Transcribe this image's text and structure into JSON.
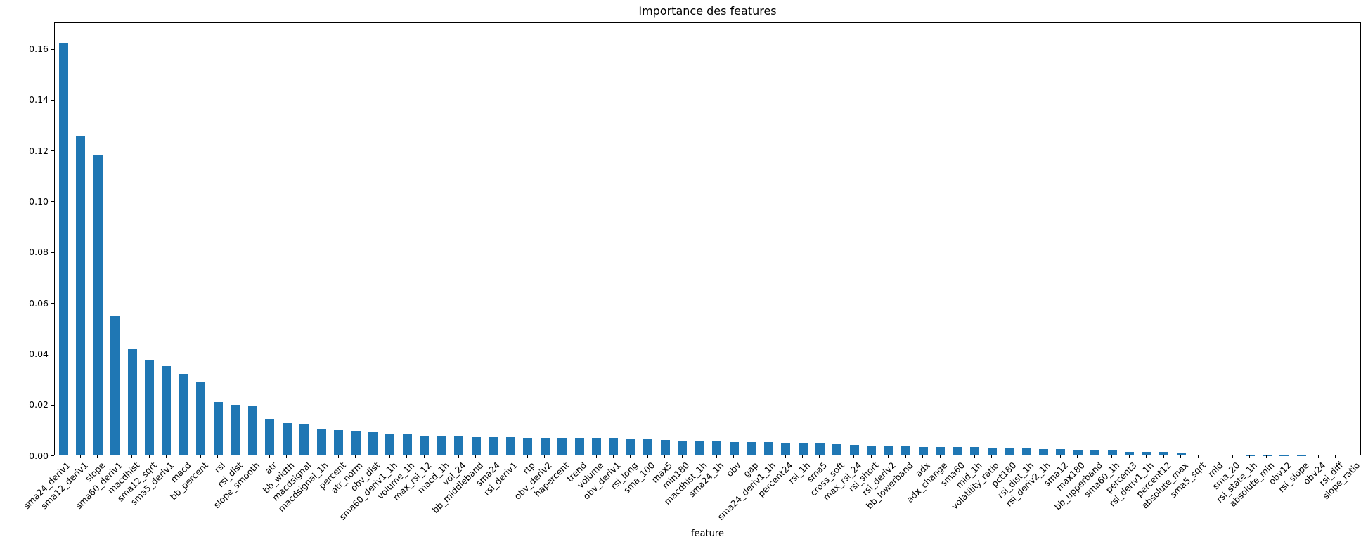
{
  "chart_data": {
    "type": "bar",
    "title": "Importance des features",
    "xlabel": "feature",
    "ylabel": "",
    "bar_color": "#1f77b4",
    "grid": false,
    "legend_position": "none",
    "x_tick_rotation": 45,
    "ylim": [
      0,
      0.1704
    ],
    "ytick_labels": [
      "0.00",
      "0.02",
      "0.04",
      "0.06",
      "0.08",
      "0.10",
      "0.12",
      "0.14",
      "0.16"
    ],
    "yticks": [
      0.0,
      0.02,
      0.04,
      0.06,
      0.08,
      0.1,
      0.12,
      0.14,
      0.16
    ],
    "categories": [
      "sma24_deriv1",
      "sma12_deriv1",
      "slope",
      "sma60_deriv1",
      "macdhist",
      "sma12_sqrt",
      "sma5_deriv1",
      "macd",
      "bb_percent",
      "rsi",
      "rsi_dist",
      "slope_smooth",
      "atr",
      "bb_width",
      "macdsignal",
      "macdsignal_1h",
      "percent",
      "atr_norm",
      "obv_dist",
      "sma60_deriv1_1h",
      "volume_1h",
      "max_rsi_12",
      "macd_1h",
      "vol_24",
      "bb_middleband",
      "sma24",
      "rsi_deriv1",
      "rtp",
      "obv_deriv2",
      "hapercent",
      "trend",
      "volume",
      "obv_deriv1",
      "rsi_long",
      "sma_100",
      "max5",
      "min180",
      "macdhist_1h",
      "sma24_1h",
      "obv",
      "gap",
      "sma24_deriv1_1h",
      "percent24",
      "rsi_1h",
      "sma5",
      "cross_soft",
      "max_rsi_24",
      "rsi_short",
      "rsi_deriv2",
      "bb_lowerband",
      "adx",
      "adx_change",
      "sma60",
      "mid_1h",
      "volatility_ratio",
      "pct180",
      "rsi_dist_1h",
      "rsi_deriv2_1h",
      "sma12",
      "max180",
      "bb_upperband",
      "sma60_1h",
      "percent3",
      "rsi_deriv1_1h",
      "percent12",
      "absolute_max",
      "sma5_sqrt",
      "mid",
      "sma_20",
      "rsi_state_1h",
      "absolute_min",
      "obv12",
      "rsi_slope",
      "obv24",
      "rsi_diff",
      "slope_ratio"
    ],
    "values": [
      0.1625,
      0.126,
      0.118,
      0.055,
      0.042,
      0.0375,
      0.035,
      0.032,
      0.029,
      0.021,
      0.0198,
      0.0197,
      0.0145,
      0.0127,
      0.0122,
      0.0101,
      0.01,
      0.0098,
      0.0092,
      0.0087,
      0.0083,
      0.0078,
      0.0076,
      0.0074,
      0.0072,
      0.0071,
      0.0071,
      0.007,
      0.007,
      0.007,
      0.0069,
      0.0069,
      0.0068,
      0.0067,
      0.0066,
      0.0062,
      0.0058,
      0.0056,
      0.0055,
      0.0053,
      0.0052,
      0.0052,
      0.0051,
      0.0048,
      0.0046,
      0.0045,
      0.0042,
      0.004,
      0.0037,
      0.0036,
      0.0034,
      0.0034,
      0.0033,
      0.0032,
      0.0031,
      0.0029,
      0.0028,
      0.0026,
      0.0024,
      0.0022,
      0.0021,
      0.002,
      0.0015,
      0.0015,
      0.0014,
      0.0008,
      0.0004,
      0.0002,
      0.0002,
      0.0001,
      0.0001,
      0.0001,
      0.0001,
      0.0,
      0.0,
      0.0
    ]
  }
}
